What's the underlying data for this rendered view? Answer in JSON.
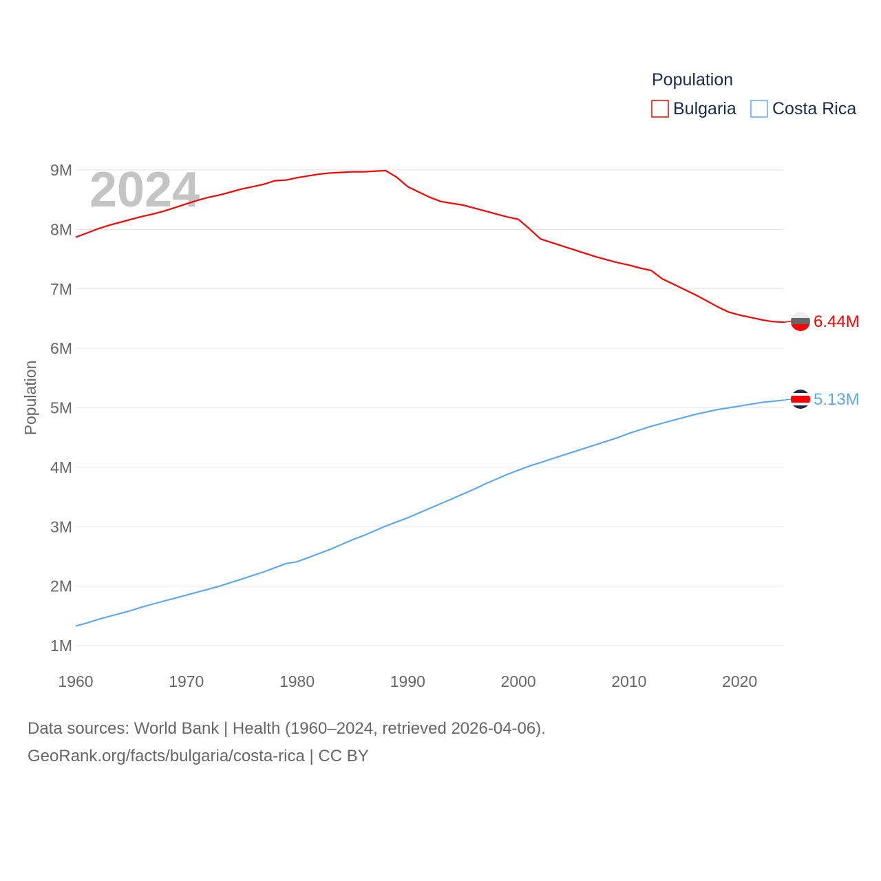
{
  "chart_data": {
    "type": "line",
    "title": "",
    "watermark_year": "2024",
    "xlabel": "",
    "ylabel": "Population",
    "xlim": [
      1960,
      2024
    ],
    "ylim": [
      1,
      9
    ],
    "y_ticks": [
      {
        "v": 1,
        "label": "1M"
      },
      {
        "v": 2,
        "label": "2M"
      },
      {
        "v": 3,
        "label": "3M"
      },
      {
        "v": 4,
        "label": "4M"
      },
      {
        "v": 5,
        "label": "5M"
      },
      {
        "v": 6,
        "label": "6M"
      },
      {
        "v": 7,
        "label": "7M"
      },
      {
        "v": 8,
        "label": "8M"
      },
      {
        "v": 9,
        "label": "9M"
      }
    ],
    "x_ticks": [
      {
        "v": 1960,
        "label": "1960"
      },
      {
        "v": 1970,
        "label": "1970"
      },
      {
        "v": 1980,
        "label": "1980"
      },
      {
        "v": 1990,
        "label": "1990"
      },
      {
        "v": 2000,
        "label": "2000"
      },
      {
        "v": 2010,
        "label": "2010"
      },
      {
        "v": 2020,
        "label": "2020"
      }
    ],
    "grid": true,
    "legend": {
      "title": "Population",
      "placement": "top-right"
    },
    "x_start": 1960,
    "series": [
      {
        "name": "Bulgaria",
        "color": "#ff0000",
        "end_label": "6.44M",
        "flag": "bulgaria-flag",
        "values": [
          7.87,
          7.94,
          8.01,
          8.07,
          8.12,
          8.17,
          8.22,
          8.26,
          8.31,
          8.37,
          8.43,
          8.49,
          8.54,
          8.58,
          8.63,
          8.68,
          8.72,
          8.76,
          8.82,
          8.83,
          8.87,
          8.9,
          8.93,
          8.95,
          8.96,
          8.97,
          8.97,
          8.98,
          8.99,
          8.88,
          8.72,
          8.63,
          8.54,
          8.47,
          8.44,
          8.41,
          8.36,
          8.31,
          8.26,
          8.21,
          8.17,
          8.01,
          7.84,
          7.78,
          7.72,
          7.66,
          7.6,
          7.54,
          7.49,
          7.44,
          7.4,
          7.35,
          7.31,
          7.17,
          7.08,
          6.99,
          6.9,
          6.8,
          6.7,
          6.61,
          6.56,
          6.52,
          6.48,
          6.45,
          6.44
        ]
      },
      {
        "name": "Costa Rica",
        "color": "#5fa8ec",
        "end_label": "5.13M",
        "flag": "costa-rica-flag",
        "values": [
          1.33,
          1.38,
          1.44,
          1.49,
          1.54,
          1.59,
          1.65,
          1.7,
          1.75,
          1.8,
          1.85,
          1.9,
          1.95,
          2.0,
          2.06,
          2.12,
          2.18,
          2.24,
          2.31,
          2.38,
          2.41,
          2.48,
          2.55,
          2.62,
          2.7,
          2.78,
          2.85,
          2.93,
          3.01,
          3.08,
          3.15,
          3.23,
          3.31,
          3.39,
          3.47,
          3.55,
          3.63,
          3.72,
          3.8,
          3.88,
          3.95,
          4.02,
          4.08,
          4.14,
          4.2,
          4.26,
          4.32,
          4.38,
          4.44,
          4.5,
          4.57,
          4.63,
          4.69,
          4.74,
          4.79,
          4.84,
          4.89,
          4.93,
          4.97,
          5.0,
          5.03,
          5.06,
          5.09,
          5.11,
          5.13
        ]
      }
    ]
  },
  "footer": {
    "line1": "Data sources: World Bank | Health (1960–2024, retrieved 2026-04-06).",
    "line2": "GeoRank.org/facts/bulgaria/costa-rica | CC BY"
  }
}
